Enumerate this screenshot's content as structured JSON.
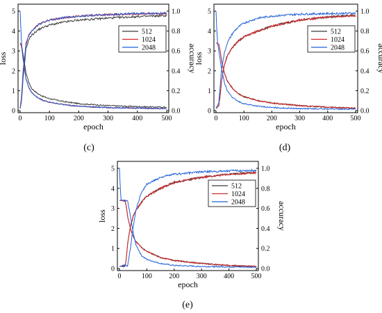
{
  "chart_data": [
    {
      "panel": "(c)",
      "type": "line",
      "xlabel": "epoch",
      "ylabel": "loss",
      "y2label": "accuracy",
      "xlim": [
        0,
        500
      ],
      "ylim": [
        0,
        5
      ],
      "y2lim": [
        0,
        1
      ],
      "xticks": [
        0,
        100,
        200,
        300,
        400,
        500
      ],
      "yticks": [
        0,
        1,
        2,
        3,
        4,
        5
      ],
      "y2ticks": [
        0.0,
        0.2,
        0.4,
        0.6,
        0.8,
        1.0
      ],
      "legend_position": "top-right",
      "series": [
        {
          "name": "512",
          "color": "#3a3a3a",
          "loss": {
            "x": [
              0,
              5,
              10,
              20,
              30,
              40,
              60,
              80,
              100,
              150,
              200,
              300,
              400,
              500
            ],
            "y": [
              3.4,
              3.3,
              2.8,
              1.9,
              1.4,
              1.1,
              0.85,
              0.7,
              0.6,
              0.45,
              0.35,
              0.25,
              0.2,
              0.17
            ]
          },
          "accuracy": {
            "x": [
              0,
              5,
              10,
              20,
              30,
              40,
              60,
              80,
              100,
              150,
              200,
              300,
              400,
              500
            ],
            "y": [
              0.02,
              0.1,
              0.32,
              0.62,
              0.72,
              0.76,
              0.81,
              0.84,
              0.86,
              0.89,
              0.91,
              0.93,
              0.945,
              0.955
            ]
          }
        },
        {
          "name": "1024",
          "color": "#d62728",
          "loss": {
            "x": [
              0,
              5,
              10,
              20,
              30,
              40,
              60,
              80,
              100,
              150,
              200,
              300,
              400,
              500
            ],
            "y": [
              3.4,
              3.2,
              2.6,
              1.6,
              1.15,
              0.9,
              0.65,
              0.5,
              0.42,
              0.3,
              0.22,
              0.15,
              0.12,
              0.1
            ]
          },
          "accuracy": {
            "x": [
              0,
              5,
              10,
              20,
              30,
              40,
              60,
              80,
              100,
              150,
              200,
              300,
              400,
              500
            ],
            "y": [
              0.02,
              0.15,
              0.4,
              0.68,
              0.76,
              0.8,
              0.86,
              0.89,
              0.91,
              0.935,
              0.95,
              0.965,
              0.97,
              0.975
            ]
          }
        },
        {
          "name": "2048",
          "color": "#1f5fd6",
          "loss": {
            "x": [
              0,
              3,
              5,
              10,
              20,
              30,
              40,
              60,
              80,
              100,
              150,
              200,
              300,
              400,
              500
            ],
            "y": [
              5.0,
              4.0,
              3.3,
              2.6,
              1.6,
              1.15,
              0.9,
              0.65,
              0.5,
              0.42,
              0.3,
              0.22,
              0.15,
              0.12,
              0.1
            ]
          },
          "accuracy": {
            "x": [
              0,
              5,
              10,
              20,
              30,
              40,
              60,
              80,
              100,
              150,
              200,
              300,
              400,
              500
            ],
            "y": [
              0.02,
              0.12,
              0.38,
              0.66,
              0.76,
              0.8,
              0.86,
              0.89,
              0.91,
              0.935,
              0.95,
              0.965,
              0.975,
              0.98
            ]
          }
        }
      ]
    },
    {
      "panel": "(d)",
      "type": "line",
      "xlabel": "epoch",
      "ylabel": "loss",
      "y2label": "accuracy",
      "xlim": [
        0,
        500
      ],
      "ylim": [
        0,
        5
      ],
      "y2lim": [
        0,
        1
      ],
      "xticks": [
        0,
        100,
        200,
        300,
        400,
        500
      ],
      "yticks": [
        0,
        1,
        2,
        3,
        4,
        5
      ],
      "y2ticks": [
        0.0,
        0.2,
        0.4,
        0.6,
        0.8,
        1.0
      ],
      "legend_position": "top-right",
      "series": [
        {
          "name": "512",
          "color": "#3a3a3a",
          "loss": {
            "x": [
              0,
              10,
              15,
              20,
              30,
              40,
              60,
              80,
              100,
              150,
              200,
              300,
              400,
              500
            ],
            "y": [
              3.4,
              3.35,
              3.0,
              2.5,
              1.9,
              1.5,
              1.1,
              0.85,
              0.7,
              0.5,
              0.38,
              0.25,
              0.17,
              0.12
            ]
          },
          "accuracy": {
            "x": [
              0,
              10,
              15,
              20,
              30,
              40,
              60,
              80,
              100,
              150,
              200,
              300,
              400,
              500
            ],
            "y": [
              0.02,
              0.05,
              0.15,
              0.3,
              0.46,
              0.55,
              0.64,
              0.7,
              0.74,
              0.8,
              0.85,
              0.91,
              0.94,
              0.96
            ]
          }
        },
        {
          "name": "1024",
          "color": "#d62728",
          "loss": {
            "x": [
              0,
              10,
              15,
              20,
              30,
              40,
              60,
              80,
              100,
              150,
              200,
              300,
              400,
              500
            ],
            "y": [
              3.4,
              3.35,
              3.0,
              2.5,
              1.9,
              1.5,
              1.1,
              0.85,
              0.7,
              0.5,
              0.38,
              0.25,
              0.17,
              0.12
            ]
          },
          "accuracy": {
            "x": [
              0,
              10,
              15,
              20,
              30,
              40,
              60,
              80,
              100,
              150,
              200,
              300,
              400,
              500
            ],
            "y": [
              0.02,
              0.05,
              0.15,
              0.3,
              0.46,
              0.55,
              0.64,
              0.7,
              0.74,
              0.8,
              0.85,
              0.91,
              0.94,
              0.955
            ]
          }
        },
        {
          "name": "2048",
          "color": "#1f5fd6",
          "loss": {
            "x": [
              0,
              3,
              6,
              10,
              20,
              30,
              40,
              60,
              80,
              100,
              150,
              200,
              300,
              400,
              500
            ],
            "y": [
              5.0,
              4.0,
              3.4,
              3.0,
              2.1,
              1.4,
              1.0,
              0.65,
              0.45,
              0.35,
              0.22,
              0.15,
              0.1,
              0.08,
              0.07
            ]
          },
          "accuracy": {
            "x": [
              0,
              10,
              15,
              20,
              30,
              40,
              60,
              80,
              100,
              150,
              200,
              300,
              400,
              500
            ],
            "y": [
              0.02,
              0.08,
              0.25,
              0.42,
              0.58,
              0.68,
              0.78,
              0.84,
              0.88,
              0.93,
              0.95,
              0.97,
              0.975,
              0.98
            ]
          }
        }
      ]
    },
    {
      "panel": "(e)",
      "type": "line",
      "xlabel": "epoch",
      "ylabel": "loss",
      "y2label": "accuracy",
      "xlim": [
        0,
        500
      ],
      "ylim": [
        0,
        5
      ],
      "y2lim": [
        0,
        1
      ],
      "xticks": [
        0,
        100,
        200,
        300,
        400,
        500
      ],
      "yticks": [
        0,
        1,
        2,
        3,
        4,
        5
      ],
      "y2ticks": [
        0.0,
        0.2,
        0.4,
        0.6,
        0.8,
        1.0
      ],
      "legend_position": "top-right",
      "series": [
        {
          "name": "512",
          "color": "#3a3a3a",
          "loss": {
            "x": [
              0,
              20,
              25,
              30,
              40,
              50,
              60,
              80,
              100,
              150,
              200,
              300,
              400,
              500
            ],
            "y": [
              3.4,
              3.38,
              3.1,
              2.6,
              2.0,
              1.6,
              1.35,
              1.05,
              0.85,
              0.55,
              0.4,
              0.25,
              0.15,
              0.1
            ]
          },
          "accuracy": {
            "x": [
              0,
              20,
              25,
              30,
              40,
              50,
              60,
              80,
              100,
              150,
              200,
              300,
              400,
              500
            ],
            "y": [
              0.02,
              0.03,
              0.1,
              0.25,
              0.42,
              0.52,
              0.58,
              0.66,
              0.72,
              0.8,
              0.86,
              0.91,
              0.94,
              0.96
            ]
          }
        },
        {
          "name": "1024",
          "color": "#d62728",
          "loss": {
            "x": [
              0,
              20,
              25,
              30,
              40,
              50,
              60,
              80,
              100,
              150,
              200,
              300,
              400,
              500
            ],
            "y": [
              3.4,
              3.38,
              3.1,
              2.6,
              2.0,
              1.6,
              1.35,
              1.05,
              0.85,
              0.55,
              0.4,
              0.25,
              0.15,
              0.1
            ]
          },
          "accuracy": {
            "x": [
              0,
              20,
              25,
              30,
              40,
              50,
              60,
              80,
              100,
              150,
              200,
              300,
              400,
              500
            ],
            "y": [
              0.02,
              0.03,
              0.1,
              0.25,
              0.42,
              0.52,
              0.58,
              0.66,
              0.72,
              0.8,
              0.86,
              0.91,
              0.94,
              0.955
            ]
          }
        },
        {
          "name": "2048",
          "color": "#1f5fd6",
          "loss": {
            "x": [
              0,
              3,
              6,
              10,
              30,
              40,
              50,
              60,
              80,
              100,
              150,
              200,
              300,
              400,
              500
            ],
            "y": [
              5.0,
              4.0,
              3.4,
              3.4,
              3.38,
              2.6,
              1.8,
              1.2,
              0.65,
              0.45,
              0.25,
              0.15,
              0.1,
              0.08,
              0.07
            ]
          },
          "accuracy": {
            "x": [
              0,
              30,
              40,
              50,
              60,
              80,
              100,
              150,
              200,
              300,
              400,
              500
            ],
            "y": [
              0.02,
              0.03,
              0.2,
              0.42,
              0.58,
              0.76,
              0.84,
              0.91,
              0.94,
              0.965,
              0.975,
              0.98
            ]
          }
        }
      ]
    }
  ]
}
